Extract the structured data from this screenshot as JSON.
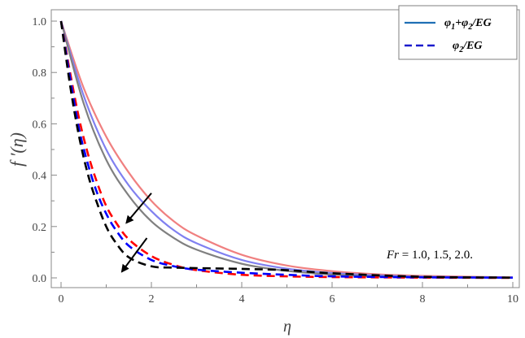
{
  "chart_data": {
    "type": "line",
    "xlabel": "η",
    "ylabel": "f ′(η)",
    "xlim": [
      0,
      10
    ],
    "ylim": [
      0,
      1.05
    ],
    "x_ticks": [
      0,
      2,
      4,
      6,
      8,
      10
    ],
    "y_ticks": [
      0.0,
      0.2,
      0.4,
      0.6,
      0.8,
      1.0
    ],
    "x_tick_labels": [
      "0",
      "2",
      "4",
      "6",
      "8",
      "10"
    ],
    "y_tick_labels": [
      "0.0",
      "0.2",
      "0.4",
      "0.6",
      "0.8",
      "1.0"
    ],
    "grid": false,
    "legend_position": "top-right",
    "legend": [
      {
        "label": "φ1+φ2/EG",
        "style": "solid",
        "color": "#1f6fb5"
      },
      {
        "label": "φ2/EG",
        "style": "dashed",
        "color": "#1a1acc"
      }
    ],
    "series": [
      {
        "style": "solid",
        "color": "#f08080",
        "x": [
          0,
          0.5,
          1.0,
          1.5,
          2.0,
          2.5,
          3.0,
          4.0,
          5.0,
          6.0,
          7.0,
          8.0,
          10.0
        ],
        "y": [
          1.0,
          0.74,
          0.55,
          0.41,
          0.3,
          0.22,
          0.165,
          0.09,
          0.048,
          0.026,
          0.014,
          0.008,
          0.002
        ]
      },
      {
        "style": "solid",
        "color": "#8080f0",
        "x": [
          0,
          0.5,
          1.0,
          1.5,
          2.0,
          2.5,
          3.0,
          4.0,
          5.0,
          6.0,
          7.0,
          8.0,
          10.0
        ],
        "y": [
          1.0,
          0.71,
          0.5,
          0.36,
          0.26,
          0.185,
          0.135,
          0.07,
          0.036,
          0.019,
          0.01,
          0.005,
          0.001
        ]
      },
      {
        "style": "solid",
        "color": "#808080",
        "x": [
          0,
          0.5,
          1.0,
          1.5,
          2.0,
          2.5,
          3.0,
          4.0,
          5.0,
          6.0,
          7.0,
          8.0,
          10.0
        ],
        "y": [
          1.0,
          0.68,
          0.46,
          0.32,
          0.22,
          0.155,
          0.11,
          0.055,
          0.027,
          0.013,
          0.006,
          0.003,
          0.001
        ]
      },
      {
        "style": "dashed",
        "color": "#ff0000",
        "x": [
          0,
          0.2,
          0.4,
          0.6,
          0.8,
          1.0,
          1.2,
          1.5,
          2.0,
          2.5,
          3.0,
          4.0,
          5.0,
          6.0,
          8.0,
          10.0
        ],
        "y": [
          1.0,
          0.8,
          0.62,
          0.48,
          0.37,
          0.28,
          0.22,
          0.15,
          0.085,
          0.05,
          0.03,
          0.012,
          0.006,
          0.003,
          0.001,
          0.0
        ]
      },
      {
        "style": "dashed",
        "color": "#0000ff",
        "x": [
          0,
          0.2,
          0.4,
          0.6,
          0.8,
          1.0,
          1.2,
          1.5,
          2.0,
          2.5,
          3.0,
          4.0,
          5.0,
          6.0,
          8.0,
          10.0
        ],
        "y": [
          1.0,
          0.78,
          0.58,
          0.44,
          0.33,
          0.25,
          0.19,
          0.125,
          0.07,
          0.045,
          0.032,
          0.02,
          0.012,
          0.006,
          0.002,
          0.001
        ]
      },
      {
        "style": "dashed",
        "color": "#000000",
        "x": [
          0,
          0.2,
          0.4,
          0.6,
          0.8,
          1.0,
          1.2,
          1.5,
          2.0,
          2.5,
          3.0,
          4.0,
          5.0,
          6.0,
          8.0,
          10.0
        ],
        "y": [
          1.0,
          0.75,
          0.55,
          0.4,
          0.29,
          0.2,
          0.14,
          0.08,
          0.045,
          0.04,
          0.038,
          0.035,
          0.03,
          0.018,
          0.004,
          0.001
        ]
      }
    ],
    "annotations": [
      {
        "text": "Fr = 1.0, 1.5, 2.0.",
        "italic_prefix": "Fr",
        "rest": " = 1.0, 1.5, 2.0."
      }
    ],
    "arrows": [
      {
        "from": [
          2.0,
          0.33
        ],
        "to": [
          1.45,
          0.215
        ]
      },
      {
        "from": [
          1.9,
          0.155
        ],
        "to": [
          1.35,
          0.025
        ]
      }
    ]
  }
}
